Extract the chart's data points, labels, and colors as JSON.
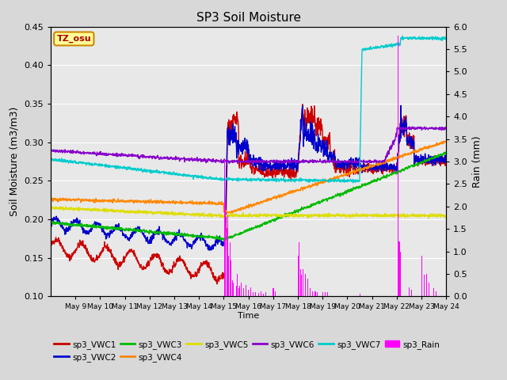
{
  "title": "SP3 Soil Moisture",
  "xlabel": "Time",
  "ylabel_left": "Soil Moisture (m3/m3)",
  "ylabel_right": "Rain (mm)",
  "ylim_left": [
    0.1,
    0.45
  ],
  "ylim_right": [
    0.0,
    6.0
  ],
  "series_colors": {
    "sp3_VWC1": "#cc0000",
    "sp3_VWC2": "#0000cc",
    "sp3_VWC3": "#00bb00",
    "sp3_VWC4": "#ff8800",
    "sp3_VWC5": "#dddd00",
    "sp3_VWC6": "#8800cc",
    "sp3_VWC7": "#00cccc",
    "sp3_Rain": "#ff00ff"
  },
  "background_color": "#d8d8d8",
  "axes_bg_color": "#e8e8e8",
  "grid_color": "#ffffff",
  "num_days": 16,
  "tick_labels": [
    "May 9",
    "May 10",
    "May 11",
    "May 12",
    "May 13",
    "May 14",
    "May 15",
    "May 16",
    "May 17",
    "May 18",
    "May 19",
    "May 20",
    "May 21",
    "May 22",
    "May 23",
    "May 24"
  ],
  "legend_row1": [
    "sp3_VWC1",
    "sp3_VWC2",
    "sp3_VWC3",
    "sp3_VWC4",
    "sp3_VWC5",
    "sp3_VWC6"
  ],
  "legend_row2": [
    "sp3_VWC7",
    "sp3_Rain"
  ]
}
